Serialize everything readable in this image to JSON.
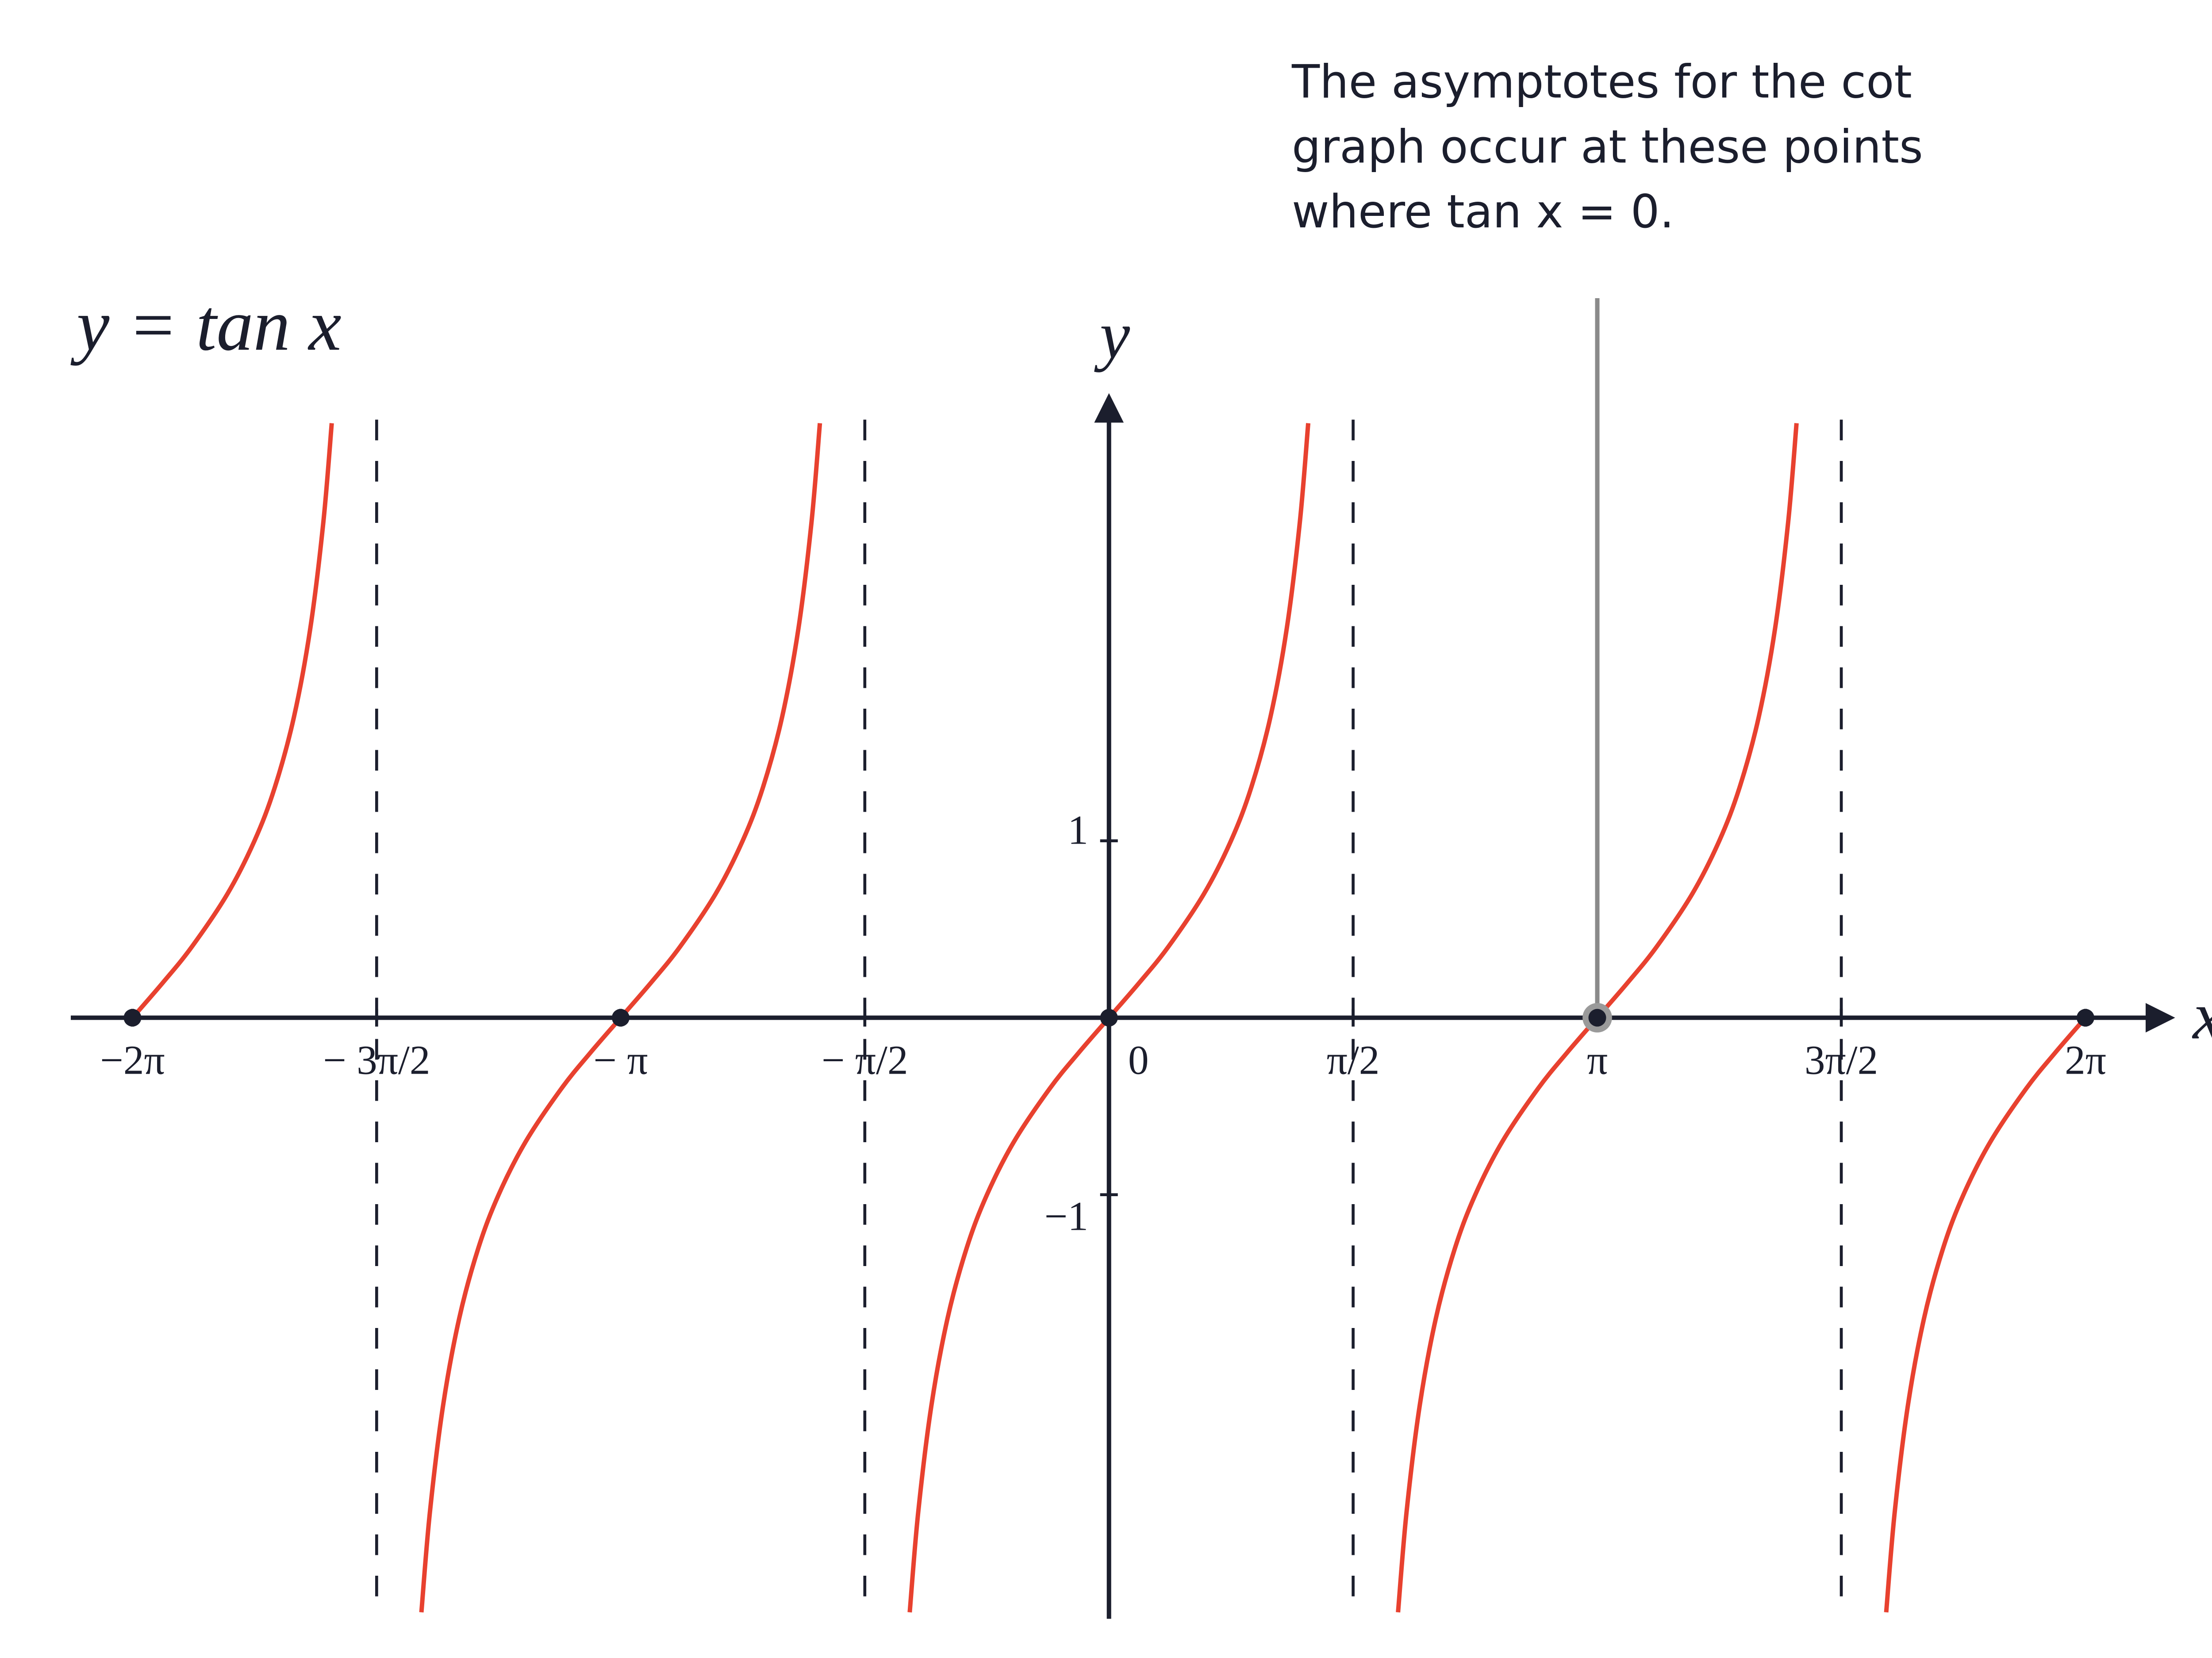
{
  "chart_data": {
    "type": "line",
    "title": "y = tan x",
    "x_label": "x",
    "y_label": "y",
    "annotation": [
      "The asymptotes for the cot",
      "graph occur at these points",
      "where tan x = 0."
    ],
    "xlim": [
      -6.68,
      6.86
    ],
    "ylim": [
      -3.38,
      3.38
    ],
    "xticks": [
      {
        "value": -6.283,
        "label": "−2π"
      },
      {
        "value": -4.712,
        "label": "− 3π/2"
      },
      {
        "value": -3.142,
        "label": "− π"
      },
      {
        "value": -1.571,
        "label": "− π/2"
      },
      0,
      {
        "value": 1.571,
        "label": "π/2"
      },
      {
        "value": 3.142,
        "label": "π"
      },
      {
        "value": 4.712,
        "label": "3π/2"
      },
      {
        "value": 6.283,
        "label": "2π"
      }
    ],
    "yticks": [
      1,
      {
        "value": -1,
        "label": "−1"
      }
    ],
    "asymptotes": [
      -4.712,
      -1.571,
      1.571,
      4.712
    ],
    "zeros": [
      -6.283,
      -3.142,
      0,
      3.142,
      6.283
    ],
    "highlight_x": 3.142,
    "color": "#e8412f",
    "series": [
      {
        "color": "#e8412f",
        "x": [
          -6.283,
          -6.086,
          -5.902,
          -5.672,
          -5.498,
          -5.368,
          -5.244,
          -5.139,
          -5.055,
          -5.001
        ],
        "values": [
          0,
          0.2,
          0.4,
          0.7,
          1,
          1.3,
          1.7,
          2.2,
          2.8,
          3.36
        ]
      },
      {
        "color": "#e8412f",
        "x": [
          -4.424,
          -4.37,
          -4.286,
          -4.181,
          -4.057,
          -3.927,
          -3.753,
          -3.523,
          -3.339,
          -3.142,
          -2.945,
          -2.761,
          -2.531,
          -2.357,
          -2.227,
          -2.103,
          -1.998,
          -1.914,
          -1.86
        ],
        "values": [
          -3.36,
          -2.8,
          -2.2,
          -1.7,
          -1.3,
          -1,
          -0.7,
          -0.4,
          -0.2,
          0,
          0.2,
          0.4,
          0.7,
          1,
          1.3,
          1.7,
          2.2,
          2.8,
          3.36
        ]
      },
      {
        "color": "#e8412f",
        "x": [
          -1.282,
          -1.228,
          -1.144,
          -1.039,
          -0.915,
          -0.785,
          -0.611,
          -0.381,
          -0.197,
          0,
          0.197,
          0.381,
          0.611,
          0.785,
          0.915,
          1.039,
          1.144,
          1.228,
          1.282
        ],
        "values": [
          -3.36,
          -2.8,
          -2.2,
          -1.7,
          -1.3,
          -1,
          -0.7,
          -0.4,
          -0.2,
          0,
          0.2,
          0.4,
          0.7,
          1,
          1.3,
          1.7,
          2.2,
          2.8,
          3.36
        ]
      },
      {
        "color": "#e8412f",
        "x": [
          1.86,
          1.914,
          1.998,
          2.103,
          2.227,
          2.357,
          2.531,
          2.761,
          2.945,
          3.142,
          3.339,
          3.523,
          3.753,
          3.927,
          4.057,
          4.181,
          4.286,
          4.37,
          4.424
        ],
        "values": [
          -3.36,
          -2.8,
          -2.2,
          -1.7,
          -1.3,
          -1,
          -0.7,
          -0.4,
          -0.2,
          0,
          0.2,
          0.4,
          0.7,
          1,
          1.3,
          1.7,
          2.2,
          2.8,
          3.36
        ]
      },
      {
        "color": "#e8412f",
        "x": [
          5.001,
          5.055,
          5.139,
          5.244,
          5.368,
          5.498,
          5.672,
          5.902,
          6.086,
          6.283
        ],
        "values": [
          -3.36,
          -2.8,
          -2.2,
          -1.7,
          -1.3,
          -1,
          -0.7,
          -0.4,
          -0.2,
          0
        ]
      }
    ]
  }
}
